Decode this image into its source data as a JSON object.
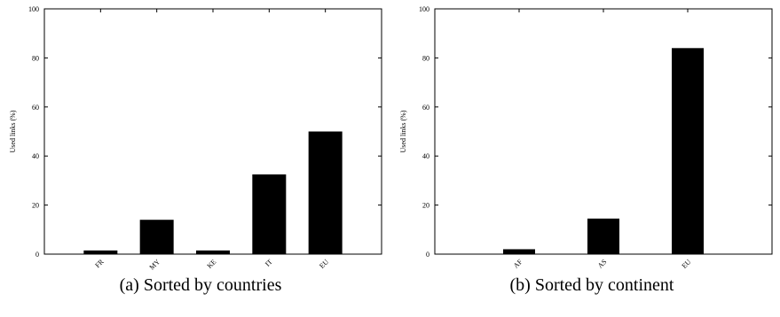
{
  "chart_data": [
    {
      "type": "bar",
      "caption": "(a) Sorted by countries",
      "categories": [
        "FR",
        "MY",
        "KE",
        "IT",
        "EU"
      ],
      "values": [
        1.5,
        14,
        1.5,
        32.5,
        50
      ],
      "ylabel": "Used links (%)",
      "ylim": [
        0,
        100
      ],
      "yticks": [
        0,
        20,
        40,
        60,
        80,
        100
      ],
      "grid": false,
      "legend": false
    },
    {
      "type": "bar",
      "caption": "(b) Sorted by continent",
      "categories": [
        "AF",
        "AS",
        "EU"
      ],
      "values": [
        2,
        14.5,
        84
      ],
      "ylabel": "Used links (%)",
      "ylim": [
        0,
        100
      ],
      "yticks": [
        0,
        20,
        40,
        60,
        80,
        100
      ],
      "grid": false,
      "legend": false
    }
  ]
}
